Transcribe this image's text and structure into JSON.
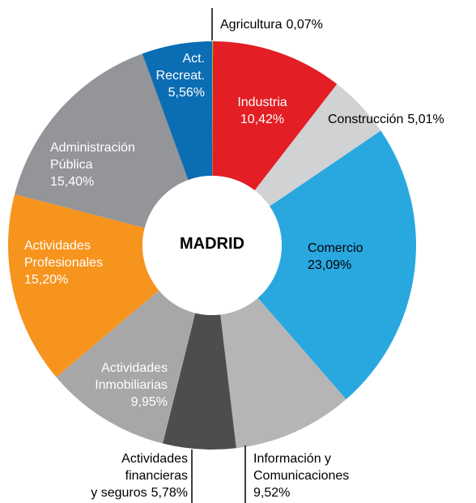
{
  "chart_data": {
    "type": "donut",
    "center_text": "MADRID",
    "categories": [
      "Agricultura",
      "Industria",
      "Construcción",
      "Comercio",
      "Información y\nComunicaciones",
      "Actividades\nfinancieras\ny seguros",
      "Actividades\nInmobiliarias",
      "Actividades\nProfesionales",
      "Administración\nPública",
      "Act.\nRecreat."
    ],
    "values": [
      0.07,
      10.42,
      5.01,
      23.09,
      9.52,
      5.78,
      9.95,
      15.2,
      15.4,
      5.56
    ],
    "value_labels": [
      "0,07%",
      "10,42%",
      "5,01%",
      "23,09%",
      "9,52%",
      "5,78%",
      "9,95%",
      "15,20%",
      "15,40%",
      "5,56%"
    ],
    "colors": [
      "#8dc63f",
      "#e31e24",
      "#d1d2d4",
      "#29a8e0",
      "#b5b5b5",
      "#4d4d4d",
      "#a7a7a7",
      "#f7941d",
      "#939598",
      "#0b6db3"
    ]
  }
}
